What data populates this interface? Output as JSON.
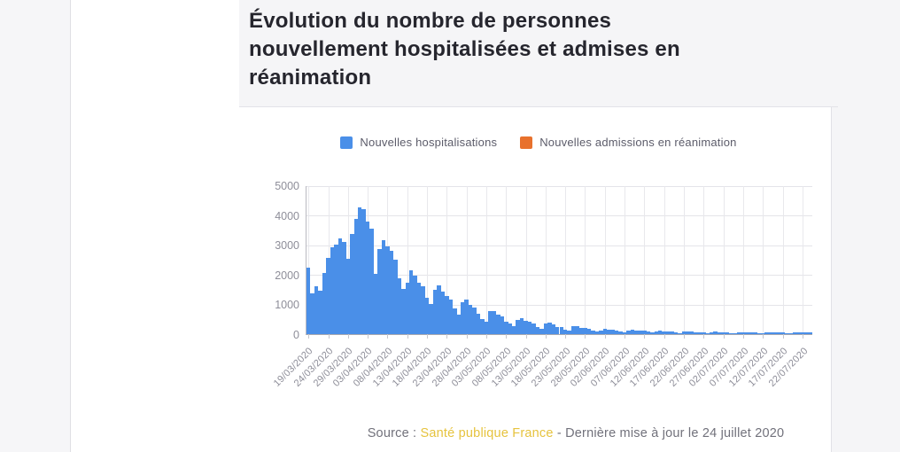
{
  "header": {
    "title": "Évolution du nombre de personnes nouvellement hospitalisées et admises en réanimation"
  },
  "legend": [
    {
      "label": "Nouvelles hospitalisations",
      "color": "#4a8fe8"
    },
    {
      "label": "Nouvelles admissions en réanimation",
      "color": "#e8712d"
    }
  ],
  "footer": {
    "source_prefix": "Source : ",
    "source_link": "Santé publique France",
    "source_suffix": " - Dernière mise à jour le 24 juillet 2020"
  },
  "colors": {
    "bar_blue": "#4a8fe8",
    "legend_orange": "#e8712d",
    "link_yellow": "#e6c33e",
    "axis_text": "#8e8e99",
    "title_text": "#26262e",
    "panel_gray": "#f5f5f7"
  },
  "chart_data": {
    "type": "bar",
    "title": "Évolution du nombre de personnes nouvellement hospitalisées et admises en réanimation",
    "x_start_date": "19/03/2020",
    "x_end_date": "24/07/2020",
    "x_tick_step_days": 5,
    "x_tick_labels": [
      "19/03/2020",
      "24/03/2020",
      "29/03/2020",
      "03/04/2020",
      "08/04/2020",
      "13/04/2020",
      "18/04/2020",
      "23/04/2020",
      "28/04/2020",
      "03/05/2020",
      "08/05/2020",
      "13/05/2020",
      "18/05/2020",
      "23/05/2020",
      "28/05/2020",
      "02/06/2020",
      "07/06/2020",
      "12/06/2020",
      "17/06/2020",
      "22/06/2020",
      "27/06/2020",
      "02/07/2020",
      "07/07/2020",
      "12/07/2020",
      "17/07/2020",
      "22/07/2020"
    ],
    "ylim": [
      0,
      5000
    ],
    "yticks": [
      0,
      1000,
      2000,
      3000,
      4000,
      5000
    ],
    "grid": true,
    "legend_position": "top-center",
    "series": [
      {
        "name": "Nouvelles hospitalisations",
        "color": "#4a8fe8",
        "visible": true,
        "values": [
          2250,
          1390,
          1610,
          1460,
          2060,
          2570,
          2930,
          3020,
          3240,
          3100,
          2560,
          3380,
          3900,
          4280,
          4210,
          3810,
          3560,
          2040,
          2860,
          3160,
          2960,
          2810,
          2520,
          1900,
          1540,
          1730,
          2160,
          1970,
          1750,
          1610,
          1240,
          1010,
          1490,
          1660,
          1430,
          1290,
          1170,
          870,
          650,
          1070,
          1160,
          980,
          890,
          700,
          520,
          420,
          780,
          770,
          660,
          600,
          430,
          350,
          270,
          470,
          540,
          440,
          420,
          360,
          250,
          180,
          350,
          380,
          320,
          250,
          240,
          160,
          120,
          260,
          270,
          210,
          210,
          190,
          130,
          80,
          110,
          170,
          160,
          140,
          130,
          90,
          60,
          130,
          150,
          130,
          110,
          110,
          80,
          50,
          100,
          110,
          100,
          90,
          80,
          50,
          30,
          80,
          90,
          80,
          70,
          70,
          50,
          30,
          70,
          80,
          70,
          70,
          60,
          40,
          30,
          60,
          70,
          60,
          60,
          50,
          40,
          20,
          60,
          50,
          70,
          60,
          60,
          40,
          20,
          60,
          70,
          60,
          60,
          50
        ]
      },
      {
        "name": "Nouvelles admissions en réanimation",
        "color": "#e8712d",
        "visible": false,
        "values": []
      }
    ]
  }
}
